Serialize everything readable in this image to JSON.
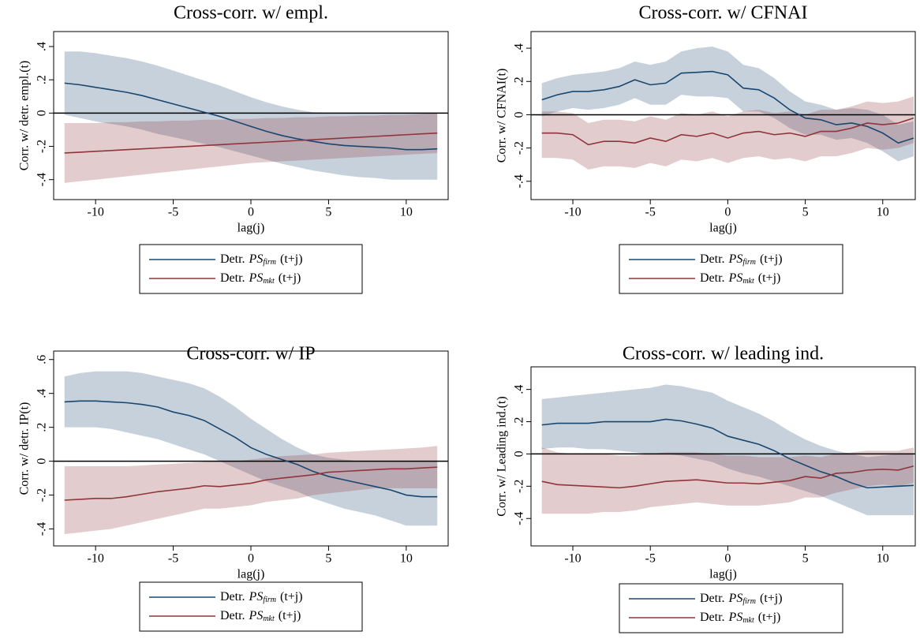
{
  "chart_data": [
    {
      "type": "line",
      "title": "Cross-corr. w/ empl.",
      "ylabel": "Corr. w/ detr. empl.(t)",
      "xlabel": "lag(j)",
      "x": [
        -12,
        -11,
        -10,
        -9,
        -8,
        -7,
        -6,
        -5,
        -4,
        -3,
        -2,
        -1,
        0,
        1,
        2,
        3,
        4,
        5,
        6,
        7,
        8,
        9,
        10,
        11,
        12
      ],
      "xlim": [
        -12.7,
        12.7
      ],
      "xticks": [
        -10,
        -5,
        0,
        5,
        10
      ],
      "ylim": [
        -0.52,
        0.49
      ],
      "yticks": [
        {
          "value": -0.4,
          "label": "-.4"
        },
        {
          "value": -0.2,
          "label": "-.2"
        },
        0,
        {
          "value": 0.2,
          "label": ".2"
        },
        {
          "value": 0.4,
          "label": ".4"
        }
      ],
      "series": [
        {
          "name": {
            "prefix": "Detr.",
            "symbol": "PS",
            "subscript": "firm",
            "suffix": "(t+j)"
          },
          "color": "#1a476f",
          "values": [
            0.18,
            0.17,
            0.155,
            0.14,
            0.125,
            0.105,
            0.08,
            0.055,
            0.03,
            0.005,
            -0.02,
            -0.05,
            -0.08,
            -0.11,
            -0.135,
            -0.155,
            -0.17,
            -0.185,
            -0.195,
            -0.2,
            -0.205,
            -0.21,
            -0.22,
            -0.22,
            -0.215
          ],
          "upper": [
            0.37,
            0.37,
            0.36,
            0.345,
            0.33,
            0.31,
            0.285,
            0.255,
            0.225,
            0.195,
            0.165,
            0.13,
            0.095,
            0.065,
            0.04,
            0.02,
            0.005,
            0,
            0,
            0,
            0,
            0,
            0,
            0,
            0
          ],
          "lower": [
            -0.01,
            -0.03,
            -0.05,
            -0.065,
            -0.08,
            -0.1,
            -0.125,
            -0.145,
            -0.165,
            -0.185,
            -0.205,
            -0.23,
            -0.255,
            -0.28,
            -0.305,
            -0.325,
            -0.345,
            -0.36,
            -0.375,
            -0.385,
            -0.39,
            -0.4,
            -0.4,
            -0.4,
            -0.4
          ]
        },
        {
          "name": {
            "prefix": "Detr.",
            "symbol": "PS",
            "subscript": "mkt",
            "suffix": "(t+j)"
          },
          "color": "#90353b",
          "values": [
            -0.24,
            -0.235,
            -0.23,
            -0.225,
            -0.22,
            -0.215,
            -0.21,
            -0.205,
            -0.2,
            -0.195,
            -0.19,
            -0.185,
            -0.18,
            -0.175,
            -0.17,
            -0.165,
            -0.16,
            -0.155,
            -0.15,
            -0.145,
            -0.14,
            -0.135,
            -0.13,
            -0.125,
            -0.12
          ],
          "upper": [
            -0.06,
            -0.06,
            -0.06,
            -0.055,
            -0.055,
            -0.05,
            -0.05,
            -0.045,
            -0.045,
            -0.04,
            -0.04,
            -0.035,
            -0.035,
            -0.03,
            -0.03,
            -0.025,
            -0.025,
            -0.02,
            -0.02,
            -0.015,
            -0.015,
            -0.01,
            -0.01,
            -0.005,
            0
          ],
          "lower": [
            -0.42,
            -0.41,
            -0.4,
            -0.39,
            -0.38,
            -0.37,
            -0.36,
            -0.35,
            -0.34,
            -0.33,
            -0.32,
            -0.31,
            -0.3,
            -0.295,
            -0.29,
            -0.285,
            -0.28,
            -0.275,
            -0.27,
            -0.265,
            -0.26,
            -0.255,
            -0.25,
            -0.245,
            -0.24
          ]
        }
      ]
    },
    {
      "type": "line",
      "title": "Cross-corr. w/ CFNAI",
      "ylabel": "Corr. w/ CFNAI(t)",
      "xlabel": "lag(j)",
      "x": [
        -12,
        -11,
        -10,
        -9,
        -8,
        -7,
        -6,
        -5,
        -4,
        -3,
        -2,
        -1,
        0,
        1,
        2,
        3,
        4,
        5,
        6,
        7,
        8,
        9,
        10,
        11,
        12
      ],
      "xlim": [
        -12.7,
        12.1
      ],
      "xticks": [
        -10,
        -5,
        0,
        5,
        10
      ],
      "ylim": [
        -0.51,
        0.5
      ],
      "yticks": [
        {
          "value": -0.4,
          "label": "-.4"
        },
        {
          "value": -0.2,
          "label": "-.2"
        },
        0,
        {
          "value": 0.2,
          "label": ".2"
        },
        {
          "value": 0.4,
          "label": ".4"
        }
      ],
      "series": [
        {
          "name": {
            "prefix": "Detr.",
            "symbol": "PS",
            "subscript": "firm",
            "suffix": "(t+j)"
          },
          "color": "#1a476f",
          "values": [
            0.09,
            0.12,
            0.14,
            0.14,
            0.15,
            0.17,
            0.21,
            0.18,
            0.19,
            0.25,
            0.255,
            0.26,
            0.24,
            0.16,
            0.15,
            0.1,
            0.03,
            -0.02,
            -0.03,
            -0.06,
            -0.05,
            -0.07,
            -0.11,
            -0.17,
            -0.14
          ],
          "upper": [
            0.19,
            0.22,
            0.24,
            0.25,
            0.26,
            0.28,
            0.32,
            0.3,
            0.32,
            0.38,
            0.4,
            0.41,
            0.38,
            0.3,
            0.28,
            0.22,
            0.14,
            0.08,
            0.06,
            0.03,
            0.04,
            0.03,
            0,
            -0.06,
            -0.04
          ],
          "lower": [
            -0.01,
            0.02,
            0.04,
            0.03,
            0.04,
            0.06,
            0.1,
            0.06,
            0.06,
            0.12,
            0.11,
            0.11,
            0.1,
            0.02,
            0.02,
            -0.02,
            -0.08,
            -0.12,
            -0.12,
            -0.15,
            -0.14,
            -0.17,
            -0.22,
            -0.28,
            -0.25
          ]
        },
        {
          "name": {
            "prefix": "Detr.",
            "symbol": "PS",
            "subscript": "mkt",
            "suffix": "(t+j)"
          },
          "color": "#90353b",
          "values": [
            -0.11,
            -0.11,
            -0.12,
            -0.18,
            -0.16,
            -0.16,
            -0.17,
            -0.14,
            -0.16,
            -0.12,
            -0.13,
            -0.11,
            -0.14,
            -0.11,
            -0.1,
            -0.12,
            -0.11,
            -0.13,
            -0.1,
            -0.1,
            -0.08,
            -0.05,
            -0.06,
            -0.05,
            -0.02
          ],
          "upper": [
            0.02,
            0.02,
            0.01,
            -0.05,
            -0.03,
            -0.03,
            -0.04,
            -0.01,
            -0.03,
            0.01,
            0,
            0.02,
            -0.01,
            0.02,
            0.03,
            0.01,
            0.02,
            0,
            0.03,
            0.03,
            0.05,
            0.08,
            0.07,
            0.08,
            0.11
          ],
          "lower": [
            -0.26,
            -0.26,
            -0.27,
            -0.33,
            -0.31,
            -0.31,
            -0.32,
            -0.29,
            -0.31,
            -0.27,
            -0.28,
            -0.26,
            -0.29,
            -0.26,
            -0.25,
            -0.27,
            -0.26,
            -0.28,
            -0.25,
            -0.25,
            -0.23,
            -0.2,
            -0.21,
            -0.2,
            -0.17
          ]
        }
      ]
    },
    {
      "type": "line",
      "title": "Cross-corr. w/ IP",
      "ylabel": "Corr. w/ detr. IP(t)",
      "xlabel": "lag(j)",
      "x": [
        -12,
        -11,
        -10,
        -9,
        -8,
        -7,
        -6,
        -5,
        -4,
        -3,
        -2,
        -1,
        0,
        1,
        2,
        3,
        4,
        5,
        6,
        7,
        8,
        9,
        10,
        11,
        12
      ],
      "xlim": [
        -12.7,
        12.7
      ],
      "xticks": [
        -10,
        -5,
        0,
        5,
        10
      ],
      "ylim": [
        -0.5,
        0.65
      ],
      "yticks": [
        {
          "value": -0.4,
          "label": "-.4"
        },
        {
          "value": -0.2,
          "label": "-.2"
        },
        0,
        {
          "value": 0.2,
          "label": ".2"
        },
        {
          "value": 0.4,
          "label": ".4"
        },
        {
          "value": 0.6,
          "label": ".6"
        }
      ],
      "series": [
        {
          "name": {
            "prefix": "Detr.",
            "symbol": "PS",
            "subscript": "firm",
            "suffix": "(t+j)"
          },
          "color": "#1a476f",
          "values": [
            0.35,
            0.355,
            0.355,
            0.35,
            0.345,
            0.335,
            0.32,
            0.29,
            0.27,
            0.24,
            0.19,
            0.14,
            0.08,
            0.04,
            0.01,
            -0.02,
            -0.06,
            -0.09,
            -0.11,
            -0.13,
            -0.15,
            -0.17,
            -0.2,
            -0.21,
            -0.21
          ],
          "upper": [
            0.5,
            0.52,
            0.53,
            0.53,
            0.53,
            0.52,
            0.5,
            0.48,
            0.46,
            0.43,
            0.38,
            0.32,
            0.25,
            0.19,
            0.13,
            0.08,
            0.04,
            0.02,
            0.01,
            0,
            0,
            0,
            0,
            0,
            0
          ],
          "lower": [
            0.2,
            0.2,
            0.2,
            0.19,
            0.17,
            0.15,
            0.13,
            0.1,
            0.07,
            0.04,
            0,
            -0.04,
            -0.08,
            -0.12,
            -0.15,
            -0.18,
            -0.22,
            -0.25,
            -0.28,
            -0.3,
            -0.32,
            -0.35,
            -0.38,
            -0.38,
            -0.38
          ]
        },
        {
          "name": {
            "prefix": "Detr.",
            "symbol": "PS",
            "subscript": "mkt",
            "suffix": "(t+j)"
          },
          "color": "#90353b",
          "values": [
            -0.23,
            -0.225,
            -0.22,
            -0.22,
            -0.21,
            -0.195,
            -0.18,
            -0.17,
            -0.16,
            -0.145,
            -0.15,
            -0.14,
            -0.13,
            -0.11,
            -0.1,
            -0.09,
            -0.08,
            -0.065,
            -0.06,
            -0.055,
            -0.05,
            -0.045,
            -0.045,
            -0.04,
            -0.035
          ],
          "upper": [
            -0.03,
            -0.03,
            -0.03,
            -0.03,
            -0.03,
            -0.025,
            -0.02,
            -0.015,
            -0.01,
            -0.005,
            0,
            0,
            0.01,
            0.02,
            0.03,
            0.035,
            0.04,
            0.05,
            0.055,
            0.06,
            0.065,
            0.07,
            0.075,
            0.08,
            0.09
          ],
          "lower": [
            -0.43,
            -0.42,
            -0.41,
            -0.4,
            -0.38,
            -0.36,
            -0.34,
            -0.32,
            -0.3,
            -0.28,
            -0.28,
            -0.27,
            -0.26,
            -0.24,
            -0.23,
            -0.22,
            -0.2,
            -0.19,
            -0.18,
            -0.17,
            -0.16,
            -0.16,
            -0.16,
            -0.16,
            -0.16
          ]
        }
      ]
    },
    {
      "type": "line",
      "title": "Cross-corr. w/ leading ind.",
      "ylabel": "Corr. w/ Leading ind.(t)",
      "xlabel": "lag(j)",
      "x": [
        -12,
        -11,
        -10,
        -9,
        -8,
        -7,
        -6,
        -5,
        -4,
        -3,
        -2,
        -1,
        0,
        1,
        2,
        3,
        4,
        5,
        6,
        7,
        8,
        9,
        10,
        11,
        12
      ],
      "xlim": [
        -12.7,
        12.1
      ],
      "xticks": [
        -10,
        -5,
        0,
        5,
        10
      ],
      "ylim": [
        -0.57,
        0.54
      ],
      "yticks": [
        {
          "value": -0.4,
          "label": "-.4"
        },
        {
          "value": -0.2,
          "label": "-.2"
        },
        0,
        {
          "value": 0.2,
          "label": ".2"
        },
        {
          "value": 0.4,
          "label": ".4"
        }
      ],
      "series": [
        {
          "name": {
            "prefix": "Detr.",
            "symbol": "PS",
            "subscript": "firm",
            "suffix": "(t+j)"
          },
          "color": "#1a476f",
          "values": [
            0.18,
            0.19,
            0.19,
            0.19,
            0.2,
            0.2,
            0.2,
            0.2,
            0.215,
            0.205,
            0.185,
            0.16,
            0.11,
            0.085,
            0.06,
            0.02,
            -0.03,
            -0.07,
            -0.11,
            -0.14,
            -0.18,
            -0.21,
            -0.205,
            -0.2,
            -0.195
          ],
          "upper": [
            0.34,
            0.35,
            0.36,
            0.37,
            0.38,
            0.39,
            0.4,
            0.41,
            0.43,
            0.42,
            0.4,
            0.38,
            0.33,
            0.29,
            0.25,
            0.2,
            0.14,
            0.09,
            0.05,
            0.02,
            0,
            -0.02,
            -0.01,
            0,
            0
          ],
          "lower": [
            0.03,
            0.04,
            0.04,
            0.03,
            0.03,
            0.02,
            0.01,
            0,
            0,
            -0.01,
            -0.03,
            -0.05,
            -0.09,
            -0.12,
            -0.14,
            -0.17,
            -0.2,
            -0.23,
            -0.26,
            -0.3,
            -0.34,
            -0.38,
            -0.38,
            -0.38,
            -0.38
          ]
        },
        {
          "name": {
            "prefix": "Detr.",
            "symbol": "PS",
            "subscript": "mkt",
            "suffix": "(t+j)"
          },
          "color": "#90353b",
          "values": [
            -0.17,
            -0.19,
            -0.195,
            -0.2,
            -0.205,
            -0.21,
            -0.2,
            -0.185,
            -0.17,
            -0.165,
            -0.16,
            -0.17,
            -0.18,
            -0.18,
            -0.185,
            -0.175,
            -0.165,
            -0.14,
            -0.15,
            -0.12,
            -0.115,
            -0.1,
            -0.095,
            -0.1,
            -0.075
          ],
          "upper": [
            0.04,
            0.01,
            0,
            0,
            0,
            -0.01,
            -0.01,
            0,
            0.01,
            0.01,
            0.01,
            0,
            -0.01,
            -0.01,
            -0.02,
            -0.02,
            -0.02,
            -0.01,
            -0.02,
            0,
            0.01,
            0.02,
            0.02,
            0.02,
            0.04
          ],
          "lower": [
            -0.37,
            -0.37,
            -0.37,
            -0.37,
            -0.36,
            -0.36,
            -0.35,
            -0.33,
            -0.32,
            -0.31,
            -0.3,
            -0.31,
            -0.32,
            -0.32,
            -0.32,
            -0.31,
            -0.3,
            -0.27,
            -0.27,
            -0.24,
            -0.22,
            -0.2,
            -0.19,
            -0.2,
            -0.18
          ]
        }
      ]
    }
  ]
}
